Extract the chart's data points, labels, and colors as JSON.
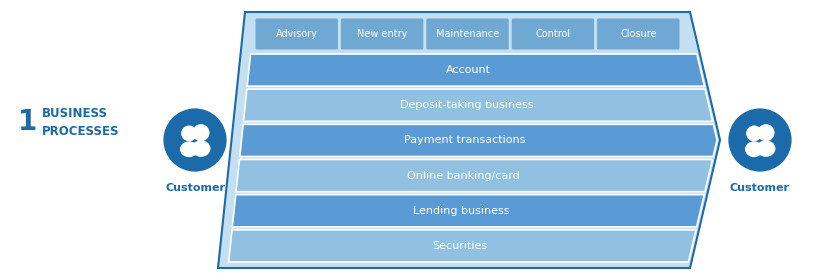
{
  "bg_color": "#ffffff",
  "title_number": "1",
  "title_text": "BUSINESS\nPROCESSES",
  "title_color": "#1b6aaa",
  "customer_label": "Customer",
  "customer_label_color": "#1b6aaa",
  "outer_fill": "#c5dff2",
  "outer_edge": "#1b6aaa",
  "top_tabs": [
    "Advisory",
    "New entry",
    "Maintenance",
    "Control",
    "Closure"
  ],
  "top_tab_fill": "#70a8d4",
  "top_tab_text_color": "#ffffff",
  "row_labels": [
    "Account",
    "Deposit-taking business",
    "Payment transactions",
    "Online banking/card",
    "Lending business",
    "Securities"
  ],
  "row_colors": [
    "#5b9bd5",
    "#92c0e0",
    "#5b9bd5",
    "#92c0e0",
    "#5b9bd5",
    "#92c0e0"
  ],
  "row_text_color": "#ffffff",
  "circle_fill": "#1b6aaa",
  "circle_edge": "#ffffff",
  "arrow_color": "#1b6aaa"
}
